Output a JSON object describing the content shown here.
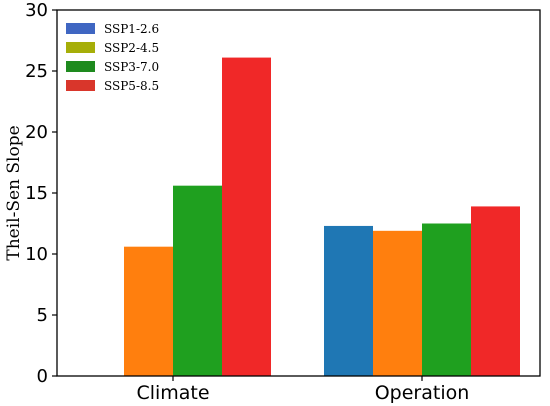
{
  "chart_data": {
    "type": "bar",
    "title": "",
    "xlabel": "",
    "ylabel": "Theil-Sen Slope",
    "ylim": [
      0,
      30
    ],
    "yticks": [
      "0",
      "5",
      "10",
      "15",
      "20",
      "25",
      "30"
    ],
    "categories": [
      "Climate",
      "Operation"
    ],
    "series": [
      {
        "name": "SSP1-2.6",
        "legend_color": "#3f66c2",
        "bar_color": "#1f77b4",
        "values": [
          0,
          12.3
        ]
      },
      {
        "name": "SSP2-4.5",
        "legend_color": "#a6ae08",
        "bar_color": "#ff7f0e",
        "values": [
          10.6,
          11.9
        ]
      },
      {
        "name": "SSP3-7.0",
        "legend_color": "#1e8a1e",
        "bar_color": "#1fa01f",
        "values": [
          15.6,
          12.5
        ]
      },
      {
        "name": "SSP5-8.5",
        "legend_color": "#d9362b",
        "bar_color": "#f02828",
        "values": [
          26.1,
          13.9
        ]
      }
    ],
    "grid": false,
    "legend_position": "top-left"
  }
}
